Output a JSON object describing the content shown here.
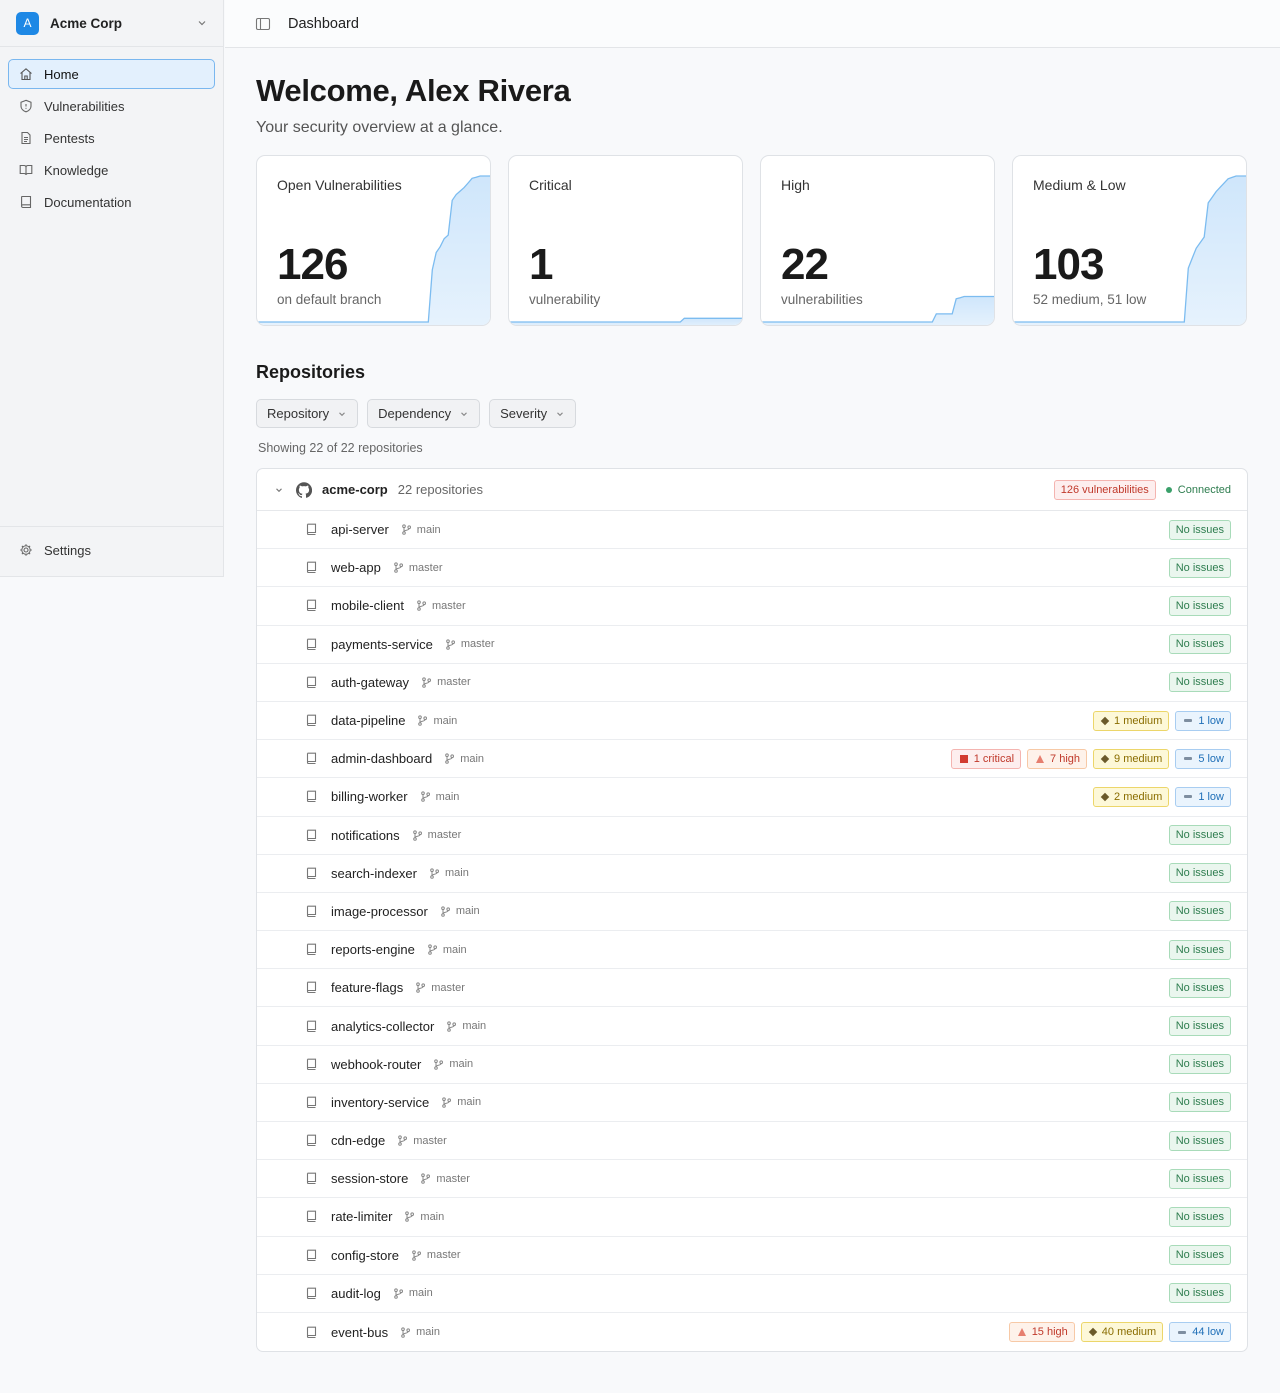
{
  "org": {
    "initial": "A",
    "name": "Acme Corp"
  },
  "nav": {
    "items": [
      {
        "label": "Home",
        "icon": "home-icon",
        "active": true
      },
      {
        "label": "Vulnerabilities",
        "icon": "shield-icon",
        "active": false
      },
      {
        "label": "Pentests",
        "icon": "document-icon",
        "active": false
      },
      {
        "label": "Knowledge",
        "icon": "book-open-icon",
        "active": false
      },
      {
        "label": "Documentation",
        "icon": "book-icon",
        "active": false
      }
    ],
    "settings": {
      "label": "Settings",
      "icon": "gear-icon"
    }
  },
  "topbar": {
    "title": "Dashboard"
  },
  "header": {
    "welcome": "Welcome, Alex Rivera",
    "subtitle": "Your security overview at a glance."
  },
  "cards": [
    {
      "title": "Open Vulnerabilities",
      "value": "126",
      "sub": "on default branch",
      "trend": [
        0,
        0,
        0,
        0,
        0,
        0,
        0,
        0,
        0,
        0,
        0,
        0,
        0,
        0,
        0,
        0,
        0,
        0,
        0,
        0,
        0,
        0,
        0,
        0,
        0,
        0,
        0,
        0,
        0,
        0,
        0,
        0,
        0,
        0,
        0,
        0,
        0,
        0,
        0,
        0,
        0,
        0,
        0,
        0,
        45,
        60,
        65,
        72,
        75,
        105,
        110,
        113,
        116,
        120,
        124,
        125,
        126,
        126,
        126,
        126
      ]
    },
    {
      "title": "Critical",
      "value": "1",
      "sub": "vulnerability",
      "trend": [
        0,
        0,
        0,
        0,
        0,
        0,
        0,
        0,
        0,
        0,
        0,
        0,
        0,
        0,
        0,
        0,
        0,
        0,
        0,
        0,
        0,
        0,
        0,
        0,
        0,
        0,
        0,
        0,
        0,
        0,
        0,
        0,
        0,
        0,
        0,
        0,
        0,
        0,
        0,
        0,
        0,
        0,
        0,
        0,
        1,
        1,
        1,
        1,
        1,
        1,
        1,
        1,
        1,
        1,
        1,
        1,
        1,
        1,
        1,
        1
      ],
      "max": 40
    },
    {
      "title": "High",
      "value": "22",
      "sub": "vulnerabilities",
      "trend": [
        0,
        0,
        0,
        0,
        0,
        0,
        0,
        0,
        0,
        0,
        0,
        0,
        0,
        0,
        0,
        0,
        0,
        0,
        0,
        0,
        0,
        0,
        0,
        0,
        0,
        0,
        0,
        0,
        0,
        0,
        0,
        0,
        0,
        0,
        0,
        0,
        0,
        0,
        0,
        0,
        0,
        0,
        0,
        0,
        7,
        7,
        7,
        7,
        7,
        20,
        21,
        22,
        22,
        22,
        22,
        22,
        22,
        22,
        22,
        22
      ],
      "max": 126
    },
    {
      "title": "Medium & Low",
      "value": "103",
      "sub": "52 medium, 51 low",
      "trend": [
        0,
        0,
        0,
        0,
        0,
        0,
        0,
        0,
        0,
        0,
        0,
        0,
        0,
        0,
        0,
        0,
        0,
        0,
        0,
        0,
        0,
        0,
        0,
        0,
        0,
        0,
        0,
        0,
        0,
        0,
        0,
        0,
        0,
        0,
        0,
        0,
        0,
        0,
        0,
        0,
        0,
        0,
        0,
        0,
        38,
        45,
        52,
        56,
        60,
        84,
        88,
        92,
        95,
        98,
        101,
        102,
        103,
        103,
        103,
        103
      ]
    }
  ],
  "repositories": {
    "title": "Repositories",
    "filters": [
      "Repository",
      "Dependency",
      "Severity"
    ],
    "showing": "Showing 22 of 22 repositories",
    "group": {
      "name": "acme-corp",
      "count": "22 repositories",
      "vulns": "126 vulnerabilities",
      "status": "Connected"
    },
    "rows": [
      {
        "name": "api-server",
        "branch": "main",
        "badges": [
          {
            "type": "ok",
            "label": "No issues"
          }
        ]
      },
      {
        "name": "web-app",
        "branch": "master",
        "badges": [
          {
            "type": "ok",
            "label": "No issues"
          }
        ]
      },
      {
        "name": "mobile-client",
        "branch": "master",
        "badges": [
          {
            "type": "ok",
            "label": "No issues"
          }
        ]
      },
      {
        "name": "payments-service",
        "branch": "master",
        "badges": [
          {
            "type": "ok",
            "label": "No issues"
          }
        ]
      },
      {
        "name": "auth-gateway",
        "branch": "master",
        "badges": [
          {
            "type": "ok",
            "label": "No issues"
          }
        ]
      },
      {
        "name": "data-pipeline",
        "branch": "main",
        "badges": [
          {
            "type": "medium",
            "label": "1 medium"
          },
          {
            "type": "low",
            "label": "1 low"
          }
        ]
      },
      {
        "name": "admin-dashboard",
        "branch": "main",
        "badges": [
          {
            "type": "critical",
            "label": "1 critical"
          },
          {
            "type": "high",
            "label": "7 high"
          },
          {
            "type": "medium",
            "label": "9 medium"
          },
          {
            "type": "low",
            "label": "5 low"
          }
        ]
      },
      {
        "name": "billing-worker",
        "branch": "main",
        "badges": [
          {
            "type": "medium",
            "label": "2 medium"
          },
          {
            "type": "low",
            "label": "1 low"
          }
        ]
      },
      {
        "name": "notifications",
        "branch": "master",
        "badges": [
          {
            "type": "ok",
            "label": "No issues"
          }
        ]
      },
      {
        "name": "search-indexer",
        "branch": "main",
        "badges": [
          {
            "type": "ok",
            "label": "No issues"
          }
        ]
      },
      {
        "name": "image-processor",
        "branch": "main",
        "badges": [
          {
            "type": "ok",
            "label": "No issues"
          }
        ]
      },
      {
        "name": "reports-engine",
        "branch": "main",
        "badges": [
          {
            "type": "ok",
            "label": "No issues"
          }
        ]
      },
      {
        "name": "feature-flags",
        "branch": "master",
        "badges": [
          {
            "type": "ok",
            "label": "No issues"
          }
        ]
      },
      {
        "name": "analytics-collector",
        "branch": "main",
        "badges": [
          {
            "type": "ok",
            "label": "No issues"
          }
        ]
      },
      {
        "name": "webhook-router",
        "branch": "main",
        "badges": [
          {
            "type": "ok",
            "label": "No issues"
          }
        ]
      },
      {
        "name": "inventory-service",
        "branch": "main",
        "badges": [
          {
            "type": "ok",
            "label": "No issues"
          }
        ]
      },
      {
        "name": "cdn-edge",
        "branch": "master",
        "badges": [
          {
            "type": "ok",
            "label": "No issues"
          }
        ]
      },
      {
        "name": "session-store",
        "branch": "master",
        "badges": [
          {
            "type": "ok",
            "label": "No issues"
          }
        ]
      },
      {
        "name": "rate-limiter",
        "branch": "main",
        "badges": [
          {
            "type": "ok",
            "label": "No issues"
          }
        ]
      },
      {
        "name": "config-store",
        "branch": "master",
        "badges": [
          {
            "type": "ok",
            "label": "No issues"
          }
        ]
      },
      {
        "name": "audit-log",
        "branch": "main",
        "badges": [
          {
            "type": "ok",
            "label": "No issues"
          }
        ]
      },
      {
        "name": "event-bus",
        "branch": "main",
        "badges": [
          {
            "type": "high",
            "label": "15 high"
          },
          {
            "type": "medium",
            "label": "40 medium"
          },
          {
            "type": "low",
            "label": "44 low"
          }
        ]
      }
    ]
  }
}
